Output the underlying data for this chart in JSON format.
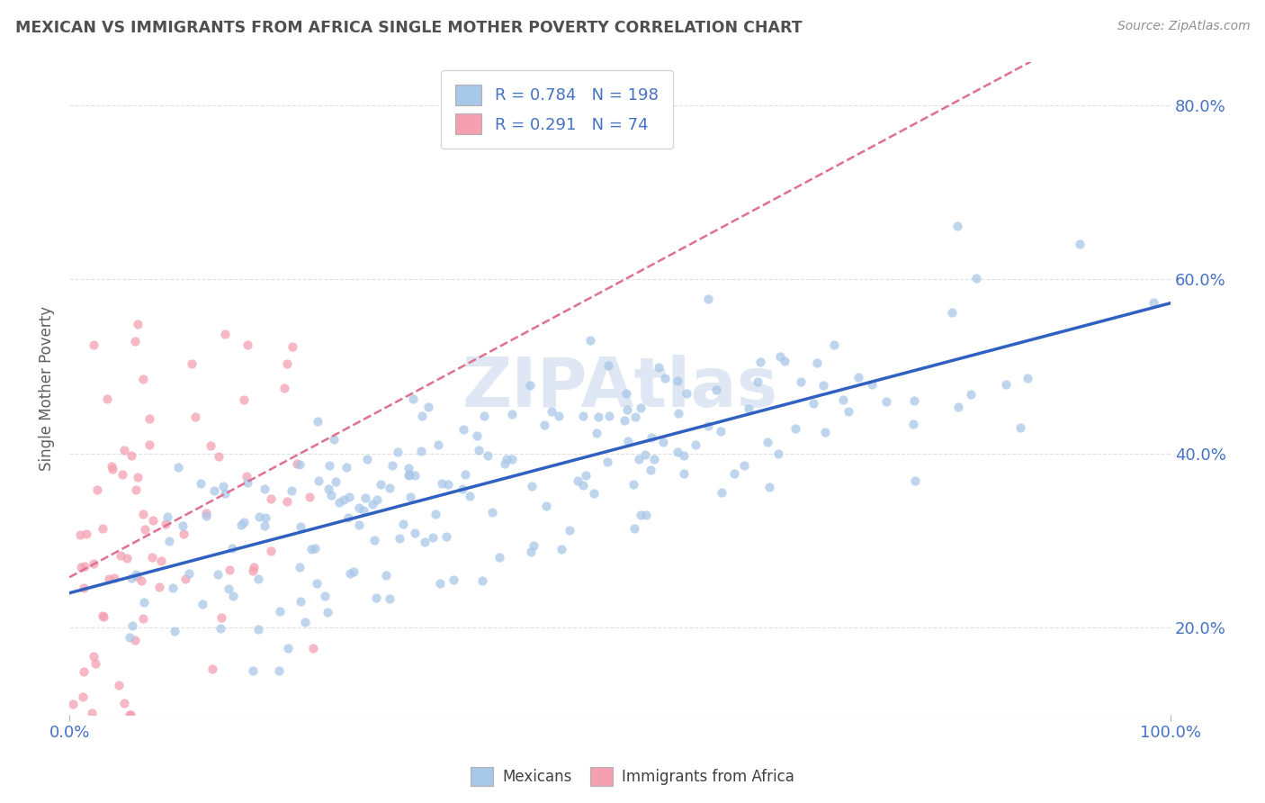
{
  "title": "MEXICAN VS IMMIGRANTS FROM AFRICA SINGLE MOTHER POVERTY CORRELATION CHART",
  "source": "Source: ZipAtlas.com",
  "ylabel": "Single Mother Poverty",
  "xlim": [
    0.0,
    1.0
  ],
  "ylim": [
    0.1,
    0.85
  ],
  "yticks": [
    0.2,
    0.4,
    0.6,
    0.8
  ],
  "ytick_labels": [
    "20.0%",
    "40.0%",
    "60.0%",
    "80.0%"
  ],
  "xticks": [
    0.0,
    1.0
  ],
  "xtick_labels": [
    "0.0%",
    "100.0%"
  ],
  "mexican_color": "#a8c8e8",
  "africa_color": "#f4a0b0",
  "mexican_line_color": "#3060c0",
  "africa_line_color": "#e07090",
  "africa_line_style": "--",
  "R_mexican": 0.784,
  "N_mexican": 198,
  "R_africa": 0.291,
  "N_africa": 74,
  "legend_label_mexican": "Mexicans",
  "legend_label_africa": "Immigrants from Africa",
  "title_color": "#505050",
  "axis_label_color": "#4472c4",
  "background_color": "#ffffff",
  "grid_color": "#e0e0e0",
  "watermark_color": "#c8d8ec",
  "mexican_dot_size": 55,
  "africa_dot_size": 55,
  "mexican_seed": 42,
  "africa_seed": 123
}
